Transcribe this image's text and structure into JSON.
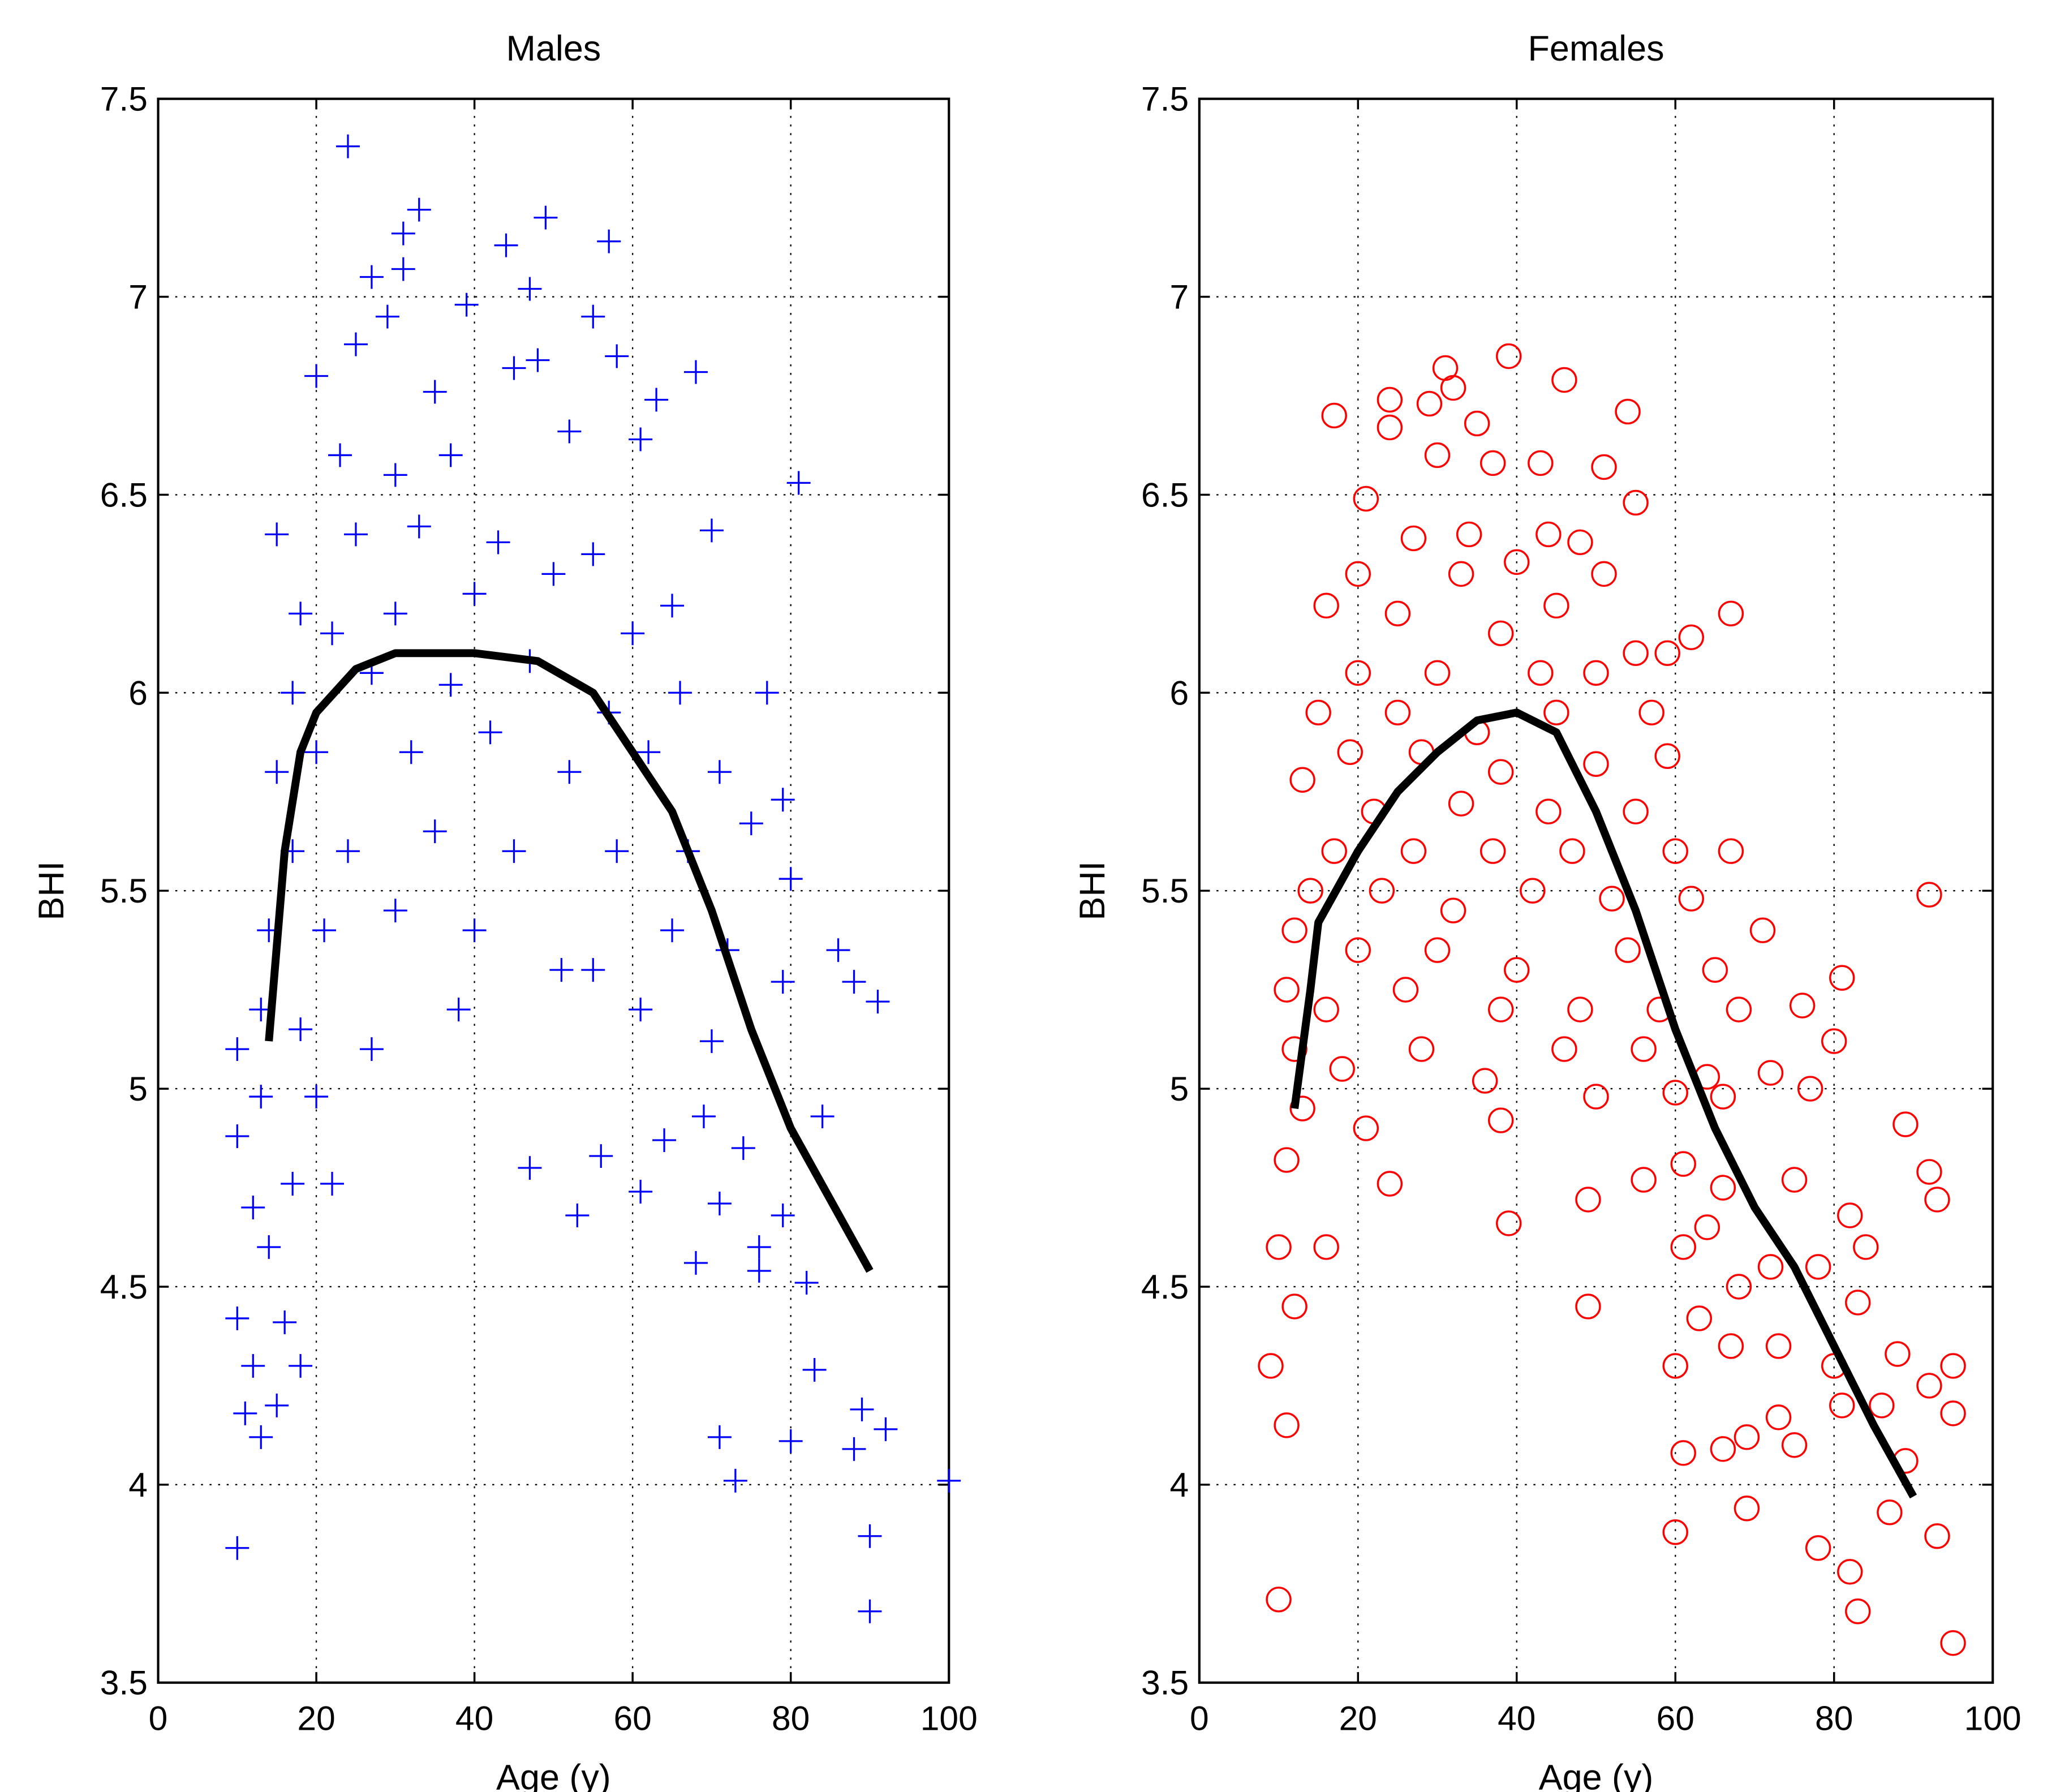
{
  "chart_data": [
    {
      "type": "scatter",
      "title": "Males",
      "xlabel": "Age (y)",
      "ylabel": "BHI",
      "xlim": [
        0,
        100
      ],
      "ylim": [
        3.5,
        7.5
      ],
      "xticks": [
        0,
        20,
        40,
        60,
        80,
        100
      ],
      "yticks": [
        3.5,
        4,
        4.5,
        5,
        5.5,
        6,
        6.5,
        7,
        7.5
      ],
      "grid": true,
      "marker": "plus",
      "color": "#0000ff",
      "x": [
        24,
        33,
        49,
        31,
        57,
        44,
        31,
        27,
        47,
        29,
        39,
        55,
        25,
        20,
        68,
        48,
        58,
        45,
        35,
        63,
        81,
        70,
        23,
        30,
        37,
        52,
        61,
        15,
        25,
        33,
        43,
        55,
        65,
        18,
        22,
        30,
        40,
        50,
        60,
        17,
        27,
        37,
        47,
        57,
        66,
        77,
        15,
        20,
        32,
        42,
        52,
        62,
        71,
        79,
        17,
        24,
        35,
        45,
        58,
        67,
        75,
        14,
        21,
        30,
        40,
        55,
        65,
        72,
        80,
        86,
        13,
        18,
        27,
        38,
        51,
        61,
        70,
        79,
        88,
        91,
        10,
        13,
        20,
        22,
        17,
        47,
        53,
        56,
        61,
        64,
        69,
        71,
        74,
        76,
        79,
        84,
        82,
        10,
        12,
        14,
        10,
        12,
        16,
        18,
        11,
        15,
        13,
        10,
        68,
        83,
        71,
        73,
        80,
        89,
        92,
        88,
        90,
        90,
        100,
        76
      ],
      "values": [
        7.38,
        7.22,
        7.2,
        7.16,
        7.14,
        7.13,
        7.07,
        7.05,
        7.02,
        6.95,
        6.98,
        6.95,
        6.88,
        6.8,
        6.81,
        6.84,
        6.85,
        6.82,
        6.76,
        6.74,
        6.53,
        6.41,
        6.6,
        6.55,
        6.6,
        6.66,
        6.64,
        6.4,
        6.4,
        6.42,
        6.38,
        6.35,
        6.22,
        6.2,
        6.15,
        6.2,
        6.25,
        6.3,
        6.15,
        6.0,
        6.05,
        6.02,
        6.08,
        5.95,
        6.0,
        6.0,
        5.8,
        5.85,
        5.85,
        5.9,
        5.8,
        5.85,
        5.8,
        5.73,
        5.6,
        5.6,
        5.65,
        5.6,
        5.6,
        5.6,
        5.67,
        5.4,
        5.4,
        5.45,
        5.4,
        5.3,
        5.4,
        5.35,
        5.53,
        5.35,
        5.2,
        5.15,
        5.1,
        5.2,
        5.3,
        5.2,
        5.12,
        5.27,
        5.27,
        5.22,
        5.1,
        4.98,
        4.98,
        4.76,
        4.76,
        4.8,
        4.68,
        4.83,
        4.74,
        4.87,
        4.93,
        4.71,
        4.85,
        4.6,
        4.68,
        4.93,
        4.51,
        4.88,
        4.7,
        4.6,
        4.42,
        4.3,
        4.41,
        4.3,
        4.18,
        4.2,
        4.12,
        3.84,
        4.56,
        4.29,
        4.12,
        4.01,
        4.11,
        4.19,
        4.14,
        4.09,
        3.87,
        3.68,
        4.01,
        4.54
      ],
      "fit": {
        "color": "#000000",
        "x": [
          14,
          16,
          18,
          20,
          25,
          30,
          40,
          48,
          55,
          60,
          65,
          70,
          75,
          80,
          85,
          90
        ],
        "values": [
          5.12,
          5.6,
          5.85,
          5.95,
          6.06,
          6.1,
          6.1,
          6.08,
          6.0,
          5.85,
          5.7,
          5.45,
          5.15,
          4.9,
          4.72,
          4.54
        ]
      }
    },
    {
      "type": "scatter",
      "title": "Females",
      "xlabel": "Age (y)",
      "ylabel": "BHI",
      "xlim": [
        0,
        100
      ],
      "ylim": [
        3.5,
        7.5
      ],
      "xticks": [
        0,
        20,
        40,
        60,
        80,
        100
      ],
      "yticks": [
        3.5,
        4,
        4.5,
        5,
        5.5,
        6,
        6.5,
        7,
        7.5
      ],
      "grid": true,
      "marker": "circle",
      "color": "#ff0000",
      "x": [
        39,
        31,
        46,
        24,
        29,
        32,
        54,
        17,
        35,
        24,
        30,
        51,
        37,
        43,
        21,
        55,
        34,
        44,
        48,
        27,
        20,
        33,
        40,
        51,
        16,
        25,
        38,
        45,
        67,
        59,
        62,
        55,
        20,
        30,
        43,
        50,
        15,
        25,
        35,
        45,
        57,
        19,
        28,
        38,
        50,
        59,
        13,
        22,
        33,
        44,
        55,
        17,
        27,
        37,
        47,
        60,
        67,
        14,
        23,
        32,
        42,
        52,
        62,
        92,
        71,
        12,
        20,
        30,
        40,
        54,
        65,
        11,
        16,
        26,
        38,
        48,
        58,
        68,
        76,
        81,
        12,
        18,
        28,
        36,
        46,
        56,
        64,
        72,
        80,
        13,
        21,
        38,
        50,
        60,
        66,
        77,
        11,
        16,
        24,
        49,
        56,
        61,
        66,
        75,
        89,
        10,
        12,
        9,
        11,
        10,
        39,
        49,
        61,
        64,
        68,
        72,
        78,
        82,
        84,
        63,
        67,
        73,
        80,
        83,
        88,
        60,
        61,
        66,
        69,
        73,
        75,
        81,
        86,
        92,
        95,
        95,
        60,
        69,
        78,
        82,
        83,
        87,
        89,
        93,
        95,
        93,
        92
      ],
      "values": [
        6.85,
        6.82,
        6.79,
        6.74,
        6.73,
        6.77,
        6.71,
        6.7,
        6.68,
        6.67,
        6.6,
        6.57,
        6.58,
        6.58,
        6.49,
        6.48,
        6.4,
        6.4,
        6.38,
        6.39,
        6.3,
        6.3,
        6.33,
        6.3,
        6.22,
        6.2,
        6.15,
        6.22,
        6.2,
        6.1,
        6.14,
        6.1,
        6.05,
        6.05,
        6.05,
        6.05,
        5.95,
        5.95,
        5.9,
        5.95,
        5.95,
        5.85,
        5.85,
        5.8,
        5.82,
        5.84,
        5.78,
        5.7,
        5.72,
        5.7,
        5.7,
        5.6,
        5.6,
        5.6,
        5.6,
        5.6,
        5.6,
        5.5,
        5.5,
        5.45,
        5.5,
        5.48,
        5.48,
        5.49,
        5.4,
        5.4,
        5.35,
        5.35,
        5.3,
        5.35,
        5.3,
        5.25,
        5.2,
        5.25,
        5.2,
        5.2,
        5.2,
        5.2,
        5.21,
        5.28,
        5.1,
        5.05,
        5.1,
        5.02,
        5.1,
        5.1,
        5.03,
        5.04,
        5.12,
        4.95,
        4.9,
        4.92,
        4.98,
        4.99,
        4.98,
        5.0,
        4.82,
        4.6,
        4.76,
        4.72,
        4.77,
        4.81,
        4.75,
        4.77,
        4.91,
        4.6,
        4.45,
        4.3,
        4.15,
        3.71,
        4.66,
        4.45,
        4.6,
        4.65,
        4.5,
        4.55,
        4.55,
        4.68,
        4.6,
        4.42,
        4.35,
        4.35,
        4.3,
        4.46,
        4.33,
        4.3,
        4.08,
        4.09,
        4.12,
        4.17,
        4.1,
        4.2,
        4.2,
        4.25,
        4.18,
        4.3,
        3.88,
        3.94,
        3.84,
        3.78,
        3.68,
        3.93,
        4.06,
        3.87,
        3.6,
        4.72,
        4.79
      ],
      "fit": {
        "color": "#000000",
        "x": [
          12,
          14,
          15,
          20,
          25,
          30,
          35,
          40,
          45,
          50,
          55,
          60,
          65,
          70,
          75,
          80,
          85,
          90
        ],
        "values": [
          4.95,
          5.25,
          5.42,
          5.6,
          5.75,
          5.85,
          5.93,
          5.95,
          5.9,
          5.7,
          5.45,
          5.15,
          4.9,
          4.7,
          4.55,
          4.35,
          4.15,
          3.97
        ]
      }
    }
  ]
}
